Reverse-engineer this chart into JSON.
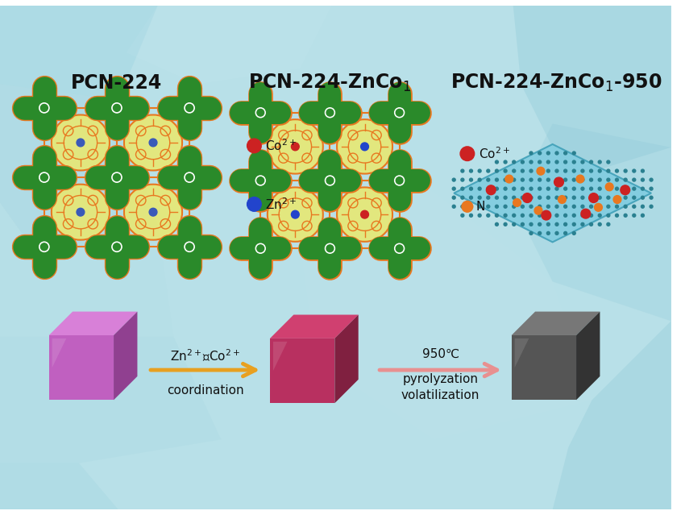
{
  "bg_color": "#b8e0e8",
  "title1": "PCN-224",
  "title2": "PCN-224-ZnCo$_1$",
  "title3": "PCN-224-ZnCo$_1$-950",
  "co_color": "#cc2222",
  "zn_color": "#2244cc",
  "N_color": "#e87820",
  "node_green": "#2a8a2a",
  "node_orange": "#e87820",
  "porphyrin_yellow": "#e8e870",
  "porphyrin_orange": "#e87820",
  "cube1_main": "#c060c0",
  "cube1_top": "#d880d8",
  "cube1_right": "#904090",
  "cube2_main": "#b83060",
  "cube2_top": "#d04070",
  "cube2_right": "#802040",
  "cube3_main": "#555555",
  "cube3_top": "#777777",
  "cube3_right": "#333333",
  "arrow1_color": "#e8a020",
  "arrow2_color": "#e89090",
  "text_color": "#111111",
  "graphene_fill": "#80cce0",
  "graphene_edge": "#40a0b8",
  "graphene_dot": "#2a8090"
}
